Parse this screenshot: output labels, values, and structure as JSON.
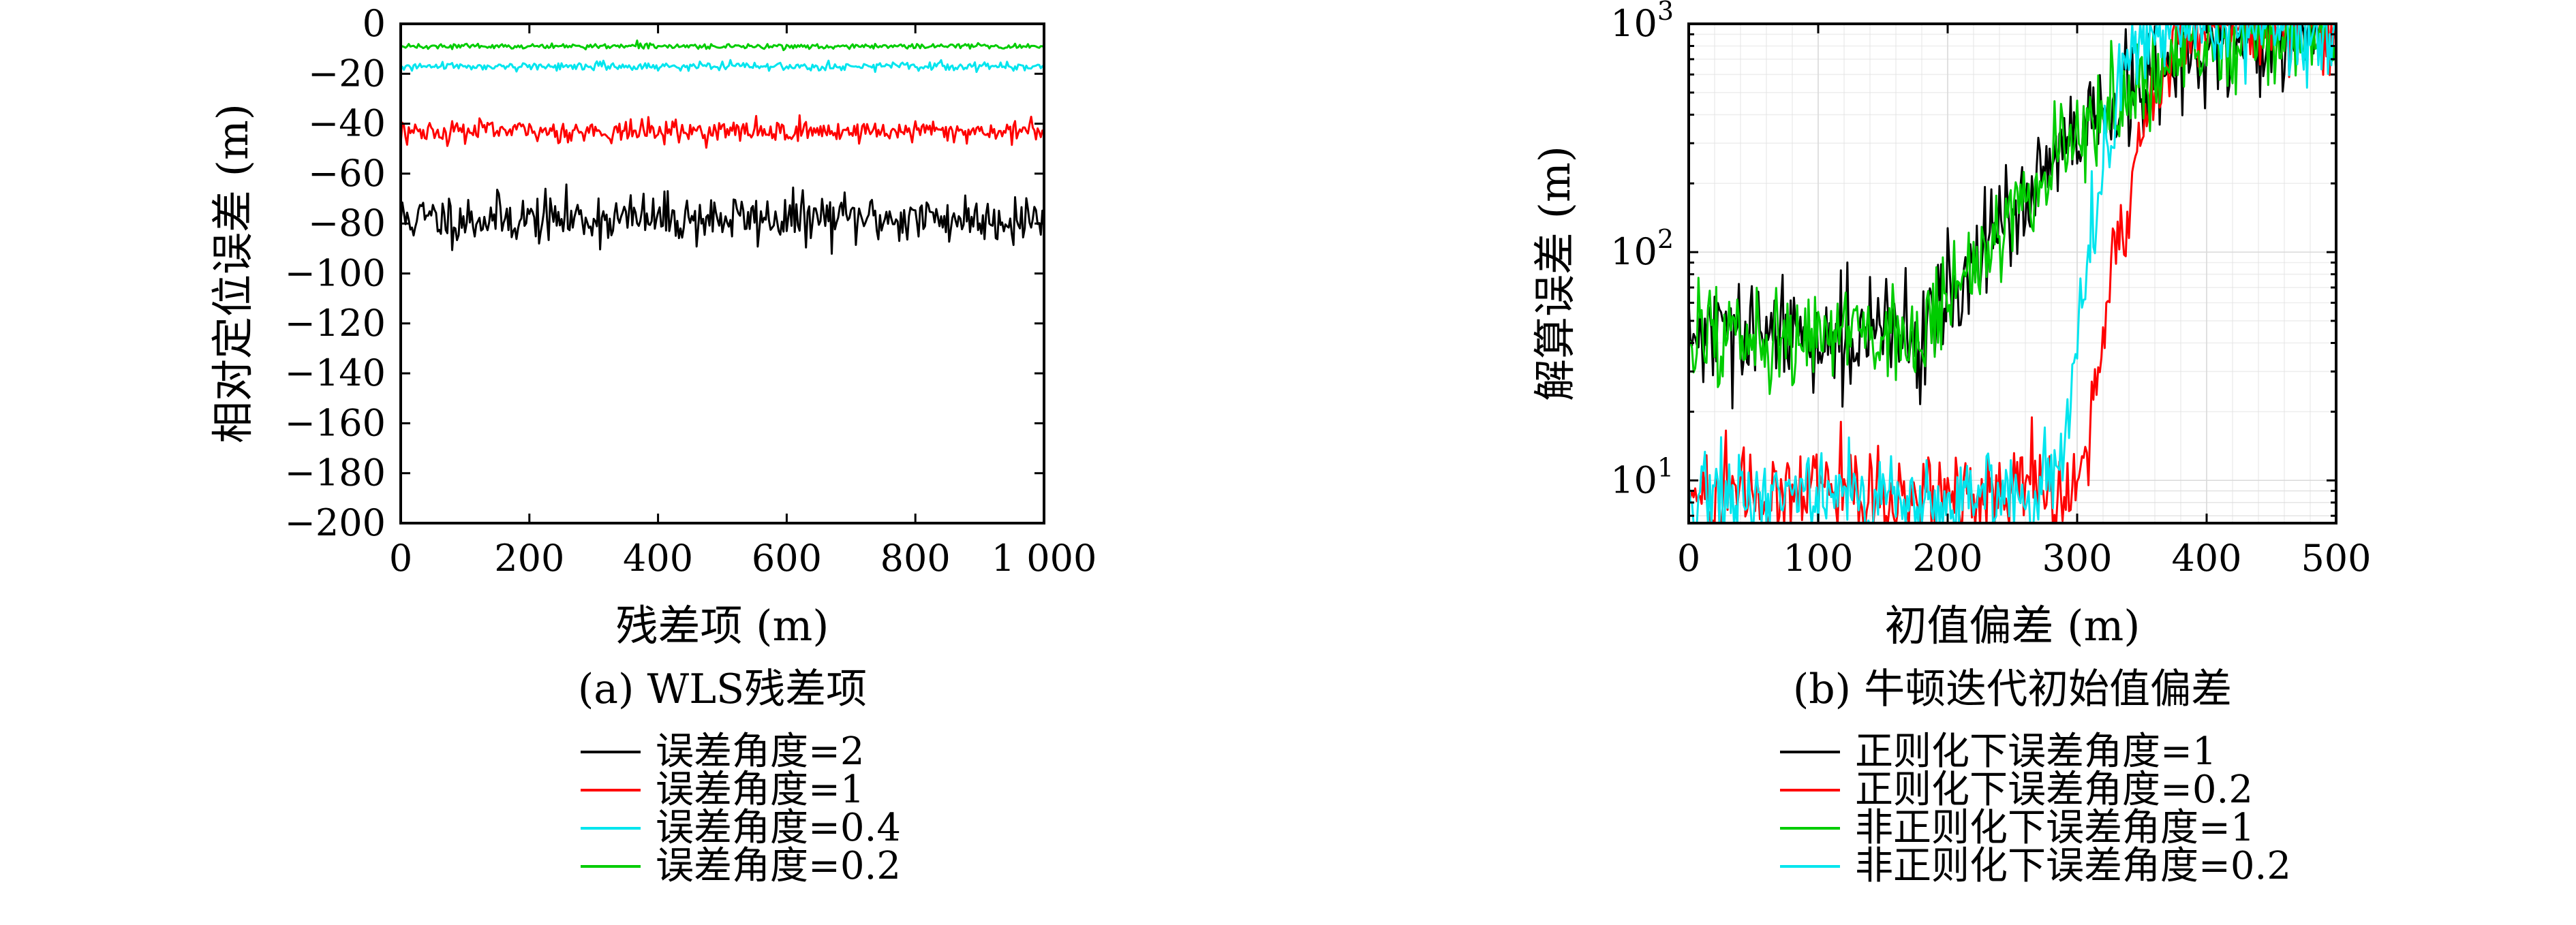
{
  "chart_data": [
    {
      "type": "line",
      "caption": "(a) WLS残差项",
      "title": "",
      "xlabel": "残差项 (m)",
      "ylabel": "相对定位误差 (m)",
      "xlim": [
        0,
        1000
      ],
      "ylim": [
        -200,
        0
      ],
      "x_ticks": [
        0,
        200,
        400,
        600,
        800,
        1000
      ],
      "x_tick_labels": [
        "0",
        "200",
        "400",
        "600",
        "800",
        "1 000"
      ],
      "y_ticks": [
        0,
        -20,
        -40,
        -60,
        -80,
        -100,
        -120,
        -140,
        -160,
        -180,
        -200
      ],
      "y_tick_labels": [
        "0",
        "−20",
        "−40",
        "−60",
        "−80",
        "−100",
        "−120",
        "−140",
        "−160",
        "−180",
        "−200"
      ],
      "grid": false,
      "legend_position": "below",
      "series": [
        {
          "name": "误差角度=2",
          "color": "#000000",
          "x": [
            0,
            1000
          ],
          "y": [
            -78,
            -78
          ],
          "noise": 5
        },
        {
          "name": "误差角度=1",
          "color": "#ff0000",
          "x": [
            0,
            1000
          ],
          "y": [
            -43,
            -43
          ],
          "noise": 2.2
        },
        {
          "name": "误差角度=0.4",
          "color": "#00e5ee",
          "x": [
            0,
            1000
          ],
          "y": [
            -17,
            -17
          ],
          "noise": 0.8
        },
        {
          "name": "误差角度=0.2",
          "color": "#00cc00",
          "x": [
            0,
            1000
          ],
          "y": [
            -9,
            -9
          ],
          "noise": 0.5
        }
      ]
    },
    {
      "type": "line",
      "caption": "(b) 牛顿迭代初始值偏差",
      "title": "",
      "xlabel": "初值偏差 (m)",
      "ylabel": "解算误差 (m)",
      "xlim": [
        0,
        500
      ],
      "ylim": [
        6.5,
        1000
      ],
      "y_scale": "log",
      "x_ticks": [
        0,
        100,
        200,
        300,
        400,
        500
      ],
      "x_tick_labels": [
        "0",
        "100",
        "200",
        "300",
        "400",
        "500"
      ],
      "y_ticks": [
        10,
        100,
        1000
      ],
      "y_tick_bases": [
        "10",
        "10",
        "10"
      ],
      "y_tick_exponents": [
        "1",
        "2",
        "3"
      ],
      "grid": true,
      "legend_position": "below",
      "series": [
        {
          "name": "正则化下误差角度=1",
          "color": "#000000",
          "x": [
            0,
            180,
            230,
            280,
            320,
            360,
            400,
            450,
            500
          ],
          "y": [
            42,
            44,
            95,
            230,
            380,
            560,
            750,
            900,
            960
          ],
          "noise": 0.12
        },
        {
          "name": "正则化下误差角度=0.2",
          "color": "#ff0000",
          "x": [
            0,
            270,
            295,
            305,
            320,
            340,
            360,
            380,
            400,
            500
          ],
          "y": [
            8.6,
            8.6,
            8.8,
            12,
            35,
            150,
            500,
            900,
            1000,
            1000
          ],
          "noise": 0.1
        },
        {
          "name": "非正则化下误差角度=1",
          "color": "#00cc00",
          "x": [
            0,
            180,
            230,
            280,
            320,
            360,
            400,
            450,
            500
          ],
          "y": [
            43,
            44,
            100,
            240,
            400,
            580,
            760,
            900,
            960
          ],
          "noise": 0.12
        },
        {
          "name": "非正则化下误差角度=0.2",
          "color": "#00e5ee",
          "x": [
            0,
            270,
            290,
            300,
            315,
            330,
            345,
            360,
            500
          ],
          "y": [
            8.6,
            8.6,
            12,
            35,
            150,
            450,
            850,
            1000,
            1000
          ],
          "noise": 0.1
        }
      ]
    }
  ]
}
